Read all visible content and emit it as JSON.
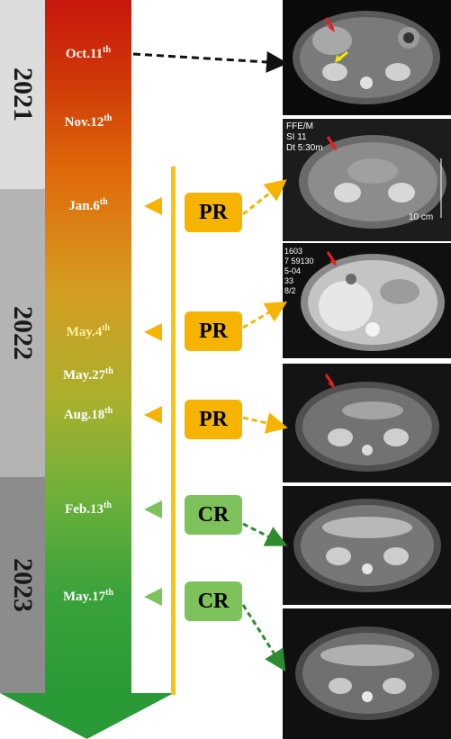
{
  "years": [
    {
      "label": "2021",
      "color": "#dcdcdc"
    },
    {
      "label": "2022",
      "color": "#b4b4b4"
    },
    {
      "label": "2023",
      "color": "#8c8c8c"
    }
  ],
  "dates": [
    {
      "base": "Oct.11",
      "sup": "th",
      "color": "#ffffff"
    },
    {
      "base": "Nov.12",
      "sup": "th",
      "color": "#ffffff"
    },
    {
      "base": "Jan.6",
      "sup": "th",
      "color": "#ffffff"
    },
    {
      "base": "May.4",
      "sup": "th",
      "color": "#fff0a0"
    },
    {
      "base": "May.27",
      "sup": "th",
      "color": "#ffffff"
    },
    {
      "base": "Aug.18",
      "sup": "th",
      "color": "#ffffff"
    },
    {
      "base": "Feb.13",
      "sup": "th",
      "color": "#ffffff"
    },
    {
      "base": "May.17",
      "sup": "th",
      "color": "#ffffff"
    }
  ],
  "responses": [
    {
      "label": "PR",
      "color": "#f6b400"
    },
    {
      "label": "PR",
      "color": "#f6b400"
    },
    {
      "label": "PR",
      "color": "#f6b400"
    },
    {
      "label": "CR",
      "color": "#7dc25a"
    },
    {
      "label": "CR",
      "color": "#7dc25a"
    }
  ],
  "scans": {
    "scan2_text": [
      "FFE/M",
      "SI 11",
      "Dt 5:30m"
    ],
    "scan2_scale": "10 cm",
    "scan3_text": [
      "1603",
      "7 59130",
      "5-04",
      "33",
      "8/2"
    ]
  },
  "colors": {
    "timeline": "#f5c518",
    "black_arrow": "#111111",
    "pr_arrow": "#f6b400",
    "cr_arrow": "#2e8b2e"
  }
}
